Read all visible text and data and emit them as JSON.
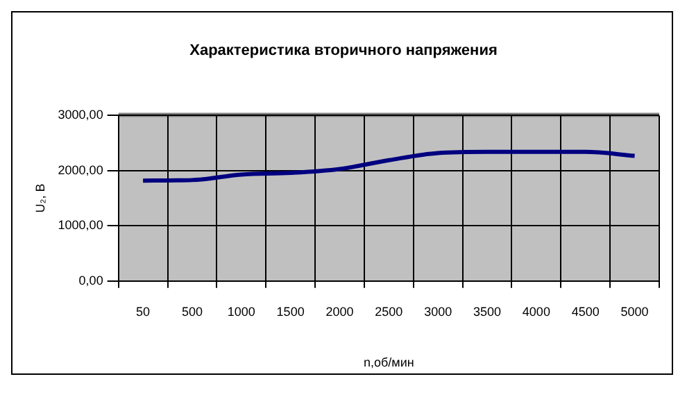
{
  "chart_data": {
    "type": "line",
    "title": "Характеристика вторичного напряжения",
    "xlabel": "n,об/мин",
    "ylabel": "U₂, В",
    "categories": [
      "50",
      "500",
      "1000",
      "1500",
      "2000",
      "2500",
      "3000",
      "3500",
      "4000",
      "4500",
      "5000"
    ],
    "series": [
      {
        "color": "#000080",
        "values": [
          1820,
          1830,
          1930,
          1960,
          2030,
          2190,
          2320,
          2340,
          2340,
          2340,
          2270
        ]
      }
    ],
    "ylim": [
      0,
      3000
    ],
    "yticks": [
      {
        "value": 0,
        "label": "0,00"
      },
      {
        "value": 1000,
        "label": "1000,00"
      },
      {
        "value": 2000,
        "label": "2000,00"
      },
      {
        "value": 3000,
        "label": "3000,00"
      }
    ],
    "grid": true,
    "legend": false,
    "marker": "none",
    "line_style": "solid"
  }
}
